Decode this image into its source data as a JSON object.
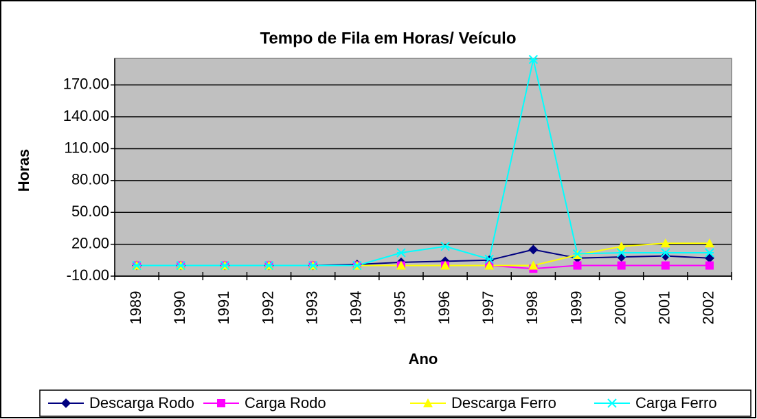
{
  "chart_data": {
    "type": "line",
    "title": "Tempo de Fila em Horas/ Veículo",
    "x_label": "Ano",
    "y_label": "Horas",
    "categories": [
      "1989",
      "1990",
      "1991",
      "1992",
      "1993",
      "1994",
      "1995",
      "1996",
      "1997",
      "1998",
      "1999",
      "2000",
      "2001",
      "2002"
    ],
    "series": [
      {
        "name": "Descarga Rodo",
        "color": "#000080",
        "marker": "diamond",
        "values": [
          0,
          0,
          0,
          0,
          0,
          1,
          3,
          4,
          5,
          15,
          7,
          8,
          9,
          7
        ]
      },
      {
        "name": "Carga Rodo",
        "color": "#ff00ff",
        "marker": "square",
        "values": [
          0,
          0,
          0,
          0,
          0,
          0,
          0,
          0,
          0,
          -3,
          0,
          0,
          0,
          0
        ]
      },
      {
        "name": "Descarga Ferro",
        "color": "#ffff00",
        "marker": "triangle",
        "values": [
          0,
          0,
          0,
          0,
          0,
          0,
          0,
          0,
          0,
          0,
          10,
          18,
          21,
          21
        ]
      },
      {
        "name": "Carga Ferro",
        "color": "#00ffff",
        "marker": "x",
        "values": [
          0,
          0,
          0,
          0,
          0,
          0,
          12,
          18,
          6,
          194,
          11,
          12,
          12,
          12
        ]
      }
    ],
    "ylim": [
      -10,
      195
    ],
    "yticks": [
      {
        "value": -10,
        "label": "-10.00"
      },
      {
        "value": 20,
        "label": "20.00"
      },
      {
        "value": 50,
        "label": "50.00"
      },
      {
        "value": 80,
        "label": "80.00"
      },
      {
        "value": 110,
        "label": "110.00"
      },
      {
        "value": 140,
        "label": "140.00"
      },
      {
        "value": 170,
        "label": "170.00"
      }
    ],
    "grid": true,
    "plot_background": "#c0c0c0",
    "legend": "bottom"
  }
}
